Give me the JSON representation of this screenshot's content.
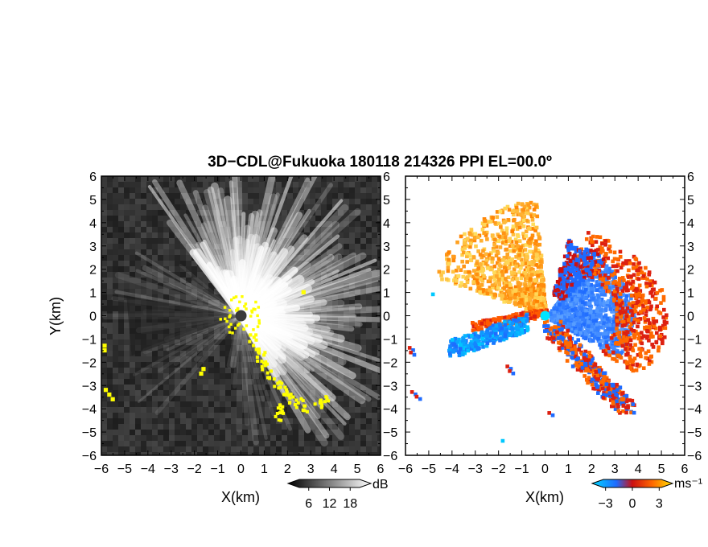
{
  "chart_data": {
    "title": "3D−CDL@Fukuoka 180118 214326 PPI EL=00.0º",
    "panels": [
      {
        "type": "heatmap",
        "quantity": "reflectivity",
        "xlabel": "X(km)",
        "ylabel": "Y(km)",
        "xlim": [
          -6,
          6
        ],
        "ylim": [
          -6,
          6
        ],
        "xticks": [
          "−6",
          "−5",
          "−4",
          "−3",
          "−2",
          "−1",
          "0",
          "1",
          "2",
          "3",
          "4",
          "5",
          "6"
        ],
        "yticks": [
          "6",
          "5",
          "4",
          "3",
          "2",
          "1",
          "0",
          "−1",
          "−2",
          "−3",
          "−4",
          "−5",
          "−6"
        ],
        "colorbar": {
          "unit": "dB",
          "ticks": [
            "6",
            "12",
            "18"
          ],
          "min": 0,
          "max": 24
        },
        "background_color": "#2b2b2b",
        "highlight_color": "#ffff00"
      },
      {
        "type": "heatmap",
        "quantity": "doppler velocity",
        "xlabel": "X(km)",
        "xlim": [
          -6,
          6
        ],
        "ylim": [
          -6,
          6
        ],
        "xticks": [
          "−6",
          "−5",
          "−4",
          "−3",
          "−2",
          "−1",
          "0",
          "1",
          "2",
          "3",
          "4",
          "5",
          "6"
        ],
        "colorbar": {
          "unit": "ms⁻¹",
          "ticks": [
            "−3",
            "0",
            "3"
          ],
          "min": -4.5,
          "max": 4.5
        },
        "colors": {
          "negative": "#1e6bff",
          "near_zero": "#cc1010",
          "positive": "#ffb000",
          "radar": "#00e5ff"
        }
      }
    ]
  }
}
